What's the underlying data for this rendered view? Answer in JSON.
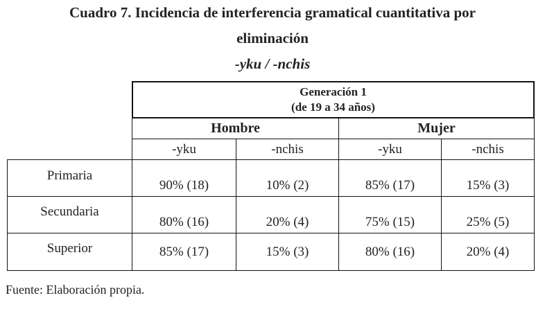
{
  "title": [
    "Cuadro 7. Incidencia de interferencia gramatical cuantitativa por",
    "eliminación"
  ],
  "subtitle": "-yku / -nchis",
  "table": {
    "group_header": [
      "Generación 1",
      "(de 19 a 34 años)"
    ],
    "genders": [
      "Hombre",
      "Mujer"
    ],
    "subheaders": [
      "-yku",
      "-nchis",
      "-yku",
      "-nchis"
    ],
    "rows": [
      [
        "Primaria",
        "90% (18)",
        "10% (2)",
        "85% (17)",
        "15% (3)"
      ],
      [
        "Secundaria",
        "80% (16)",
        "20% (4)",
        "75% (15)",
        "25% (5)"
      ],
      [
        "Superior",
        "85% (17)",
        "15% (3)",
        "80% (16)",
        "20% (4)"
      ]
    ]
  },
  "source": "Fuente: Elaboración propia."
}
